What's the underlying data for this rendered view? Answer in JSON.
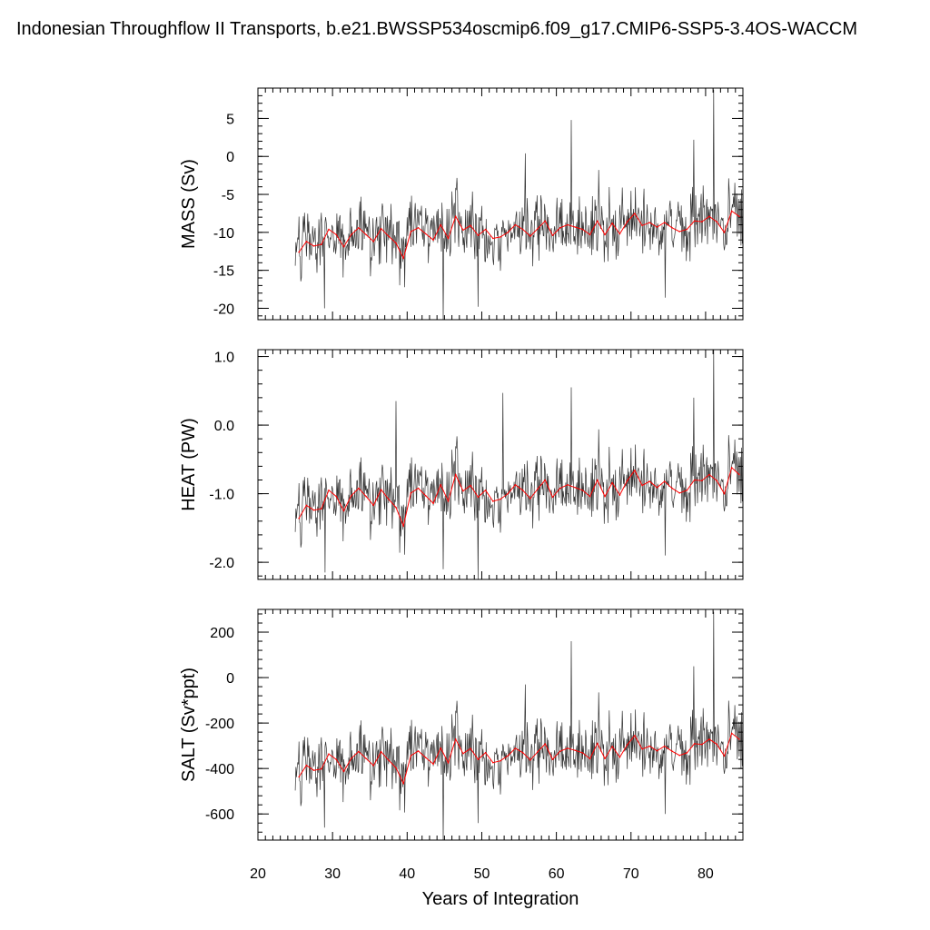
{
  "chart_data": {
    "type": "line",
    "title": "Indonesian Throughflow II Transports, b.e21.BWSSP534oscmip6.f09_g17.CMIP6-SSP5-3.4OS-WACCM",
    "xlabel": "Years of Integration",
    "xlim": [
      20,
      85
    ],
    "xticks": [
      20,
      30,
      40,
      50,
      60,
      70,
      80
    ],
    "colors": {
      "monthly": "#000000",
      "annual": "#ff0000"
    },
    "panels": [
      {
        "name": "mass",
        "ylabel": "MASS (Sv)",
        "ylim": [
          -21.5,
          9
        ],
        "yticks": [
          5,
          0,
          -5,
          -10,
          -15,
          -20
        ],
        "yticklabels": [
          "5",
          "0",
          "-5",
          "-10",
          "-15",
          "-20"
        ],
        "annual_mean": [
          -12.6,
          -11.2,
          -11.8,
          -11.6,
          -9.6,
          -10.3,
          -11.9,
          -10.3,
          -9.4,
          -10.3,
          -11.2,
          -9.5,
          -10.5,
          -11.4,
          -13.4,
          -9.9,
          -9.4,
          -10.2,
          -11.0,
          -9.0,
          -10.8,
          -7.9,
          -9.7,
          -9.1,
          -10.4,
          -9.6,
          -10.8,
          -10.6,
          -10.0,
          -9.0,
          -9.6,
          -10.5,
          -9.5,
          -8.5,
          -10.4,
          -9.4,
          -9.0,
          -9.3,
          -9.6,
          -10.3,
          -8.5,
          -10.3,
          -8.8,
          -10.2,
          -8.6,
          -7.5,
          -9.1,
          -8.7,
          -9.3,
          -8.7,
          -9.4,
          -9.9,
          -9.6,
          -8.5,
          -8.6,
          -7.9,
          -8.6,
          -10.0,
          -7.2,
          -7.9
        ],
        "maxima": [
          [
            55.8,
            0.4
          ],
          [
            62.0,
            4.8
          ],
          [
            78.4,
            2.2
          ],
          [
            81.1,
            8.8
          ]
        ],
        "minima": [
          [
            28.9,
            -20.0
          ],
          [
            44.8,
            -21.5
          ],
          [
            49.5,
            -19.8
          ],
          [
            74.6,
            -18.6
          ]
        ]
      },
      {
        "name": "heat",
        "ylabel": "HEAT (PW)",
        "ylim": [
          -2.25,
          1.1
        ],
        "yticks": [
          1.0,
          0.0,
          -1.0,
          -2.0
        ],
        "yticklabels": [
          "1.0",
          "0.0",
          "-1.0",
          "-2.0"
        ],
        "annual_mean": [
          -1.36,
          -1.17,
          -1.24,
          -1.22,
          -0.95,
          -1.04,
          -1.25,
          -1.03,
          -0.92,
          -1.04,
          -1.17,
          -0.94,
          -1.08,
          -1.2,
          -1.47,
          -0.99,
          -0.92,
          -1.03,
          -1.14,
          -0.87,
          -1.11,
          -0.72,
          -0.96,
          -0.88,
          -1.05,
          -0.95,
          -1.11,
          -1.08,
          -1.0,
          -0.87,
          -0.95,
          -1.07,
          -0.93,
          -0.8,
          -1.05,
          -0.92,
          -0.87,
          -0.91,
          -0.95,
          -1.04,
          -0.8,
          -1.04,
          -0.84,
          -1.02,
          -0.81,
          -0.66,
          -0.88,
          -0.82,
          -0.91,
          -0.82,
          -0.92,
          -0.99,
          -0.95,
          -0.8,
          -0.81,
          -0.72,
          -0.81,
          -1.0,
          -0.62,
          -0.72
        ],
        "maxima": [
          [
            38.5,
            0.35
          ],
          [
            52.8,
            0.47
          ],
          [
            62.0,
            0.55
          ],
          [
            78.4,
            0.4
          ],
          [
            81.1,
            1.1
          ]
        ],
        "minima": [
          [
            29.0,
            -2.15
          ],
          [
            44.8,
            -2.1
          ],
          [
            49.5,
            -2.25
          ],
          [
            74.6,
            -1.9
          ]
        ]
      },
      {
        "name": "salt",
        "ylabel": "SALT (Sv*ppt)",
        "ylim": [
          -715,
          300
        ],
        "yticks": [
          200,
          0,
          -200,
          -400,
          -600
        ],
        "yticklabels": [
          "200",
          "0",
          "-200",
          "-400",
          "-600"
        ],
        "annual_mean": [
          -437,
          -386,
          -408,
          -402,
          -336,
          -360,
          -413,
          -356,
          -325,
          -356,
          -387,
          -326,
          -363,
          -397,
          -466,
          -343,
          -323,
          -352,
          -380,
          -310,
          -375,
          -271,
          -334,
          -312,
          -360,
          -330,
          -374,
          -366,
          -344,
          -311,
          -330,
          -363,
          -326,
          -292,
          -360,
          -324,
          -311,
          -320,
          -331,
          -357,
          -289,
          -356,
          -303,
          -350,
          -296,
          -255,
          -314,
          -302,
          -322,
          -302,
          -324,
          -342,
          -331,
          -291,
          -294,
          -271,
          -293,
          -345,
          -245,
          -271
        ],
        "maxima": [
          [
            55.8,
            -30
          ],
          [
            62.0,
            160
          ],
          [
            78.4,
            50
          ],
          [
            81.1,
            290
          ]
        ],
        "minima": [
          [
            28.9,
            -660
          ],
          [
            44.8,
            -715
          ],
          [
            49.5,
            -640
          ],
          [
            74.6,
            -600
          ]
        ]
      }
    ]
  }
}
